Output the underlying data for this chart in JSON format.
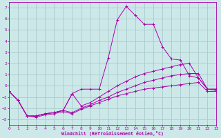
{
  "xlabel": "Windchill (Refroidissement éolien,°C)",
  "background_color": "#cce8e8",
  "grid_color": "#aacccc",
  "line_color": "#aa00aa",
  "xlim": [
    0,
    23
  ],
  "ylim": [
    -3.5,
    7.5
  ],
  "xticks": [
    0,
    1,
    2,
    3,
    4,
    5,
    6,
    7,
    8,
    9,
    10,
    11,
    12,
    13,
    14,
    15,
    16,
    17,
    18,
    19,
    20,
    21,
    22,
    23
  ],
  "yticks": [
    -3,
    -2,
    -1,
    0,
    1,
    2,
    3,
    4,
    5,
    6,
    7
  ],
  "lines": [
    {
      "x": [
        0,
        1,
        2,
        3,
        4,
        5,
        6,
        7,
        8,
        9,
        10,
        11,
        12,
        13,
        14,
        15,
        16,
        17,
        18,
        19,
        20,
        21,
        22,
        23
      ],
      "y": [
        -0.5,
        -1.3,
        -2.7,
        -2.7,
        -2.5,
        -2.4,
        -2.2,
        -0.7,
        -0.3,
        -0.3,
        -0.3,
        2.5,
        5.9,
        7.1,
        6.3,
        5.5,
        5.5,
        3.5,
        2.4,
        2.3,
        0.9,
        0.7,
        -0.3,
        -0.3
      ]
    },
    {
      "x": [
        0,
        1,
        2,
        3,
        4,
        5,
        6,
        7,
        8,
        9,
        10,
        11,
        12,
        13,
        14,
        15,
        16,
        17,
        18,
        19,
        20,
        21,
        22,
        23
      ],
      "y": [
        -0.5,
        -1.3,
        -2.7,
        -2.7,
        -2.5,
        -2.4,
        -2.2,
        -0.7,
        -1.8,
        -1.5,
        -1.0,
        -0.5,
        0.0,
        0.4,
        0.8,
        1.1,
        1.3,
        1.5,
        1.7,
        1.9,
        2.0,
        0.7,
        -0.3,
        -0.3
      ]
    },
    {
      "x": [
        0,
        1,
        2,
        3,
        4,
        5,
        6,
        7,
        8,
        9,
        10,
        11,
        12,
        13,
        14,
        15,
        16,
        17,
        18,
        19,
        20,
        21,
        22,
        23
      ],
      "y": [
        -0.5,
        -1.3,
        -2.7,
        -2.7,
        -2.5,
        -2.4,
        -2.2,
        -2.4,
        -2.0,
        -1.7,
        -1.3,
        -1.0,
        -0.6,
        -0.3,
        0.0,
        0.3,
        0.5,
        0.7,
        0.9,
        1.0,
        1.1,
        1.1,
        -0.3,
        -0.4
      ]
    },
    {
      "x": [
        0,
        1,
        2,
        3,
        4,
        5,
        6,
        7,
        8,
        9,
        10,
        11,
        12,
        13,
        14,
        15,
        16,
        17,
        18,
        19,
        20,
        21,
        22,
        23
      ],
      "y": [
        -0.5,
        -1.3,
        -2.7,
        -2.8,
        -2.6,
        -2.5,
        -2.3,
        -2.5,
        -2.1,
        -1.8,
        -1.5,
        -1.2,
        -0.9,
        -0.7,
        -0.5,
        -0.3,
        -0.2,
        -0.1,
        0.0,
        0.1,
        0.2,
        0.3,
        -0.5,
        -0.5
      ]
    }
  ]
}
